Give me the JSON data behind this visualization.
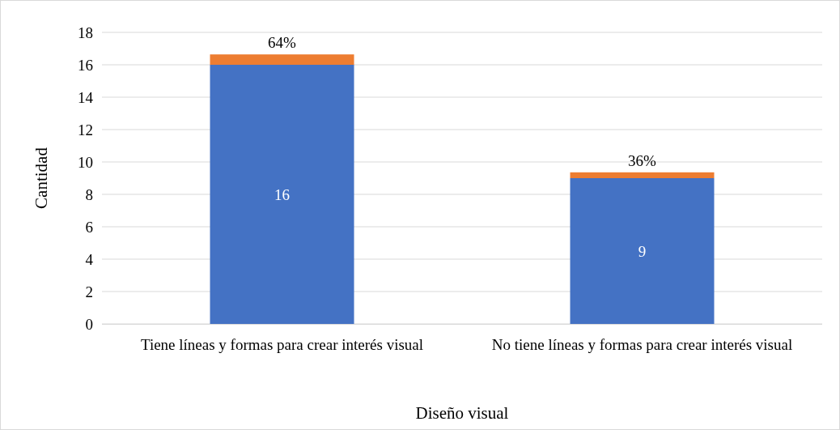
{
  "chart_data": {
    "type": "bar",
    "stacked": true,
    "xlabel": "Diseño visual",
    "ylabel": "Cantidad",
    "categories": [
      "Tiene líneas y formas para crear interés visual",
      "No tiene líneas y formas para crear interés visual"
    ],
    "series": [
      {
        "color": "#4472c4",
        "values": [
          16,
          9
        ],
        "value_labels": [
          "16",
          "9"
        ]
      },
      {
        "color": "#ed7d31",
        "values": [
          0.64,
          0.36
        ],
        "value_labels": [
          "64%",
          "36%"
        ]
      }
    ],
    "ylim": [
      0,
      18
    ],
    "yticks": [
      0,
      2,
      4,
      6,
      8,
      10,
      12,
      14,
      16,
      18
    ],
    "grid": "y"
  }
}
